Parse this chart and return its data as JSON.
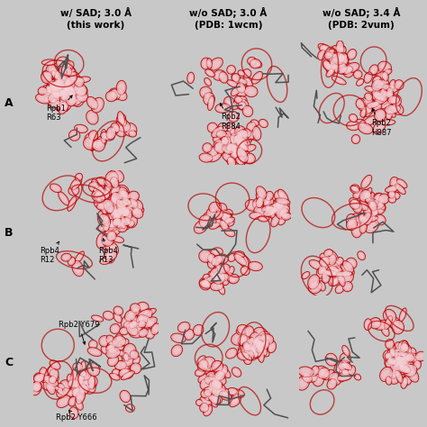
{
  "figure_bg": "#c8c8c8",
  "col_headers": [
    "w/ SAD; 3.0 Å\n(this work)",
    "w/o SAD; 3.0 Å\n(PDB: 1wcm)",
    "w/o SAD; 3.4 Å\n(PDB: 2vum)"
  ],
  "row_labels": [
    "A",
    "B",
    "C"
  ],
  "header_fontsize": 7.5,
  "label_fontsize": 9,
  "annotation_fontsize": 6.0,
  "image_bg": "#ffffff",
  "mesh_fill": "#e8b0b5",
  "mesh_edge": "#b80000",
  "stick_color": "#505050",
  "annotation_color": "#000000"
}
